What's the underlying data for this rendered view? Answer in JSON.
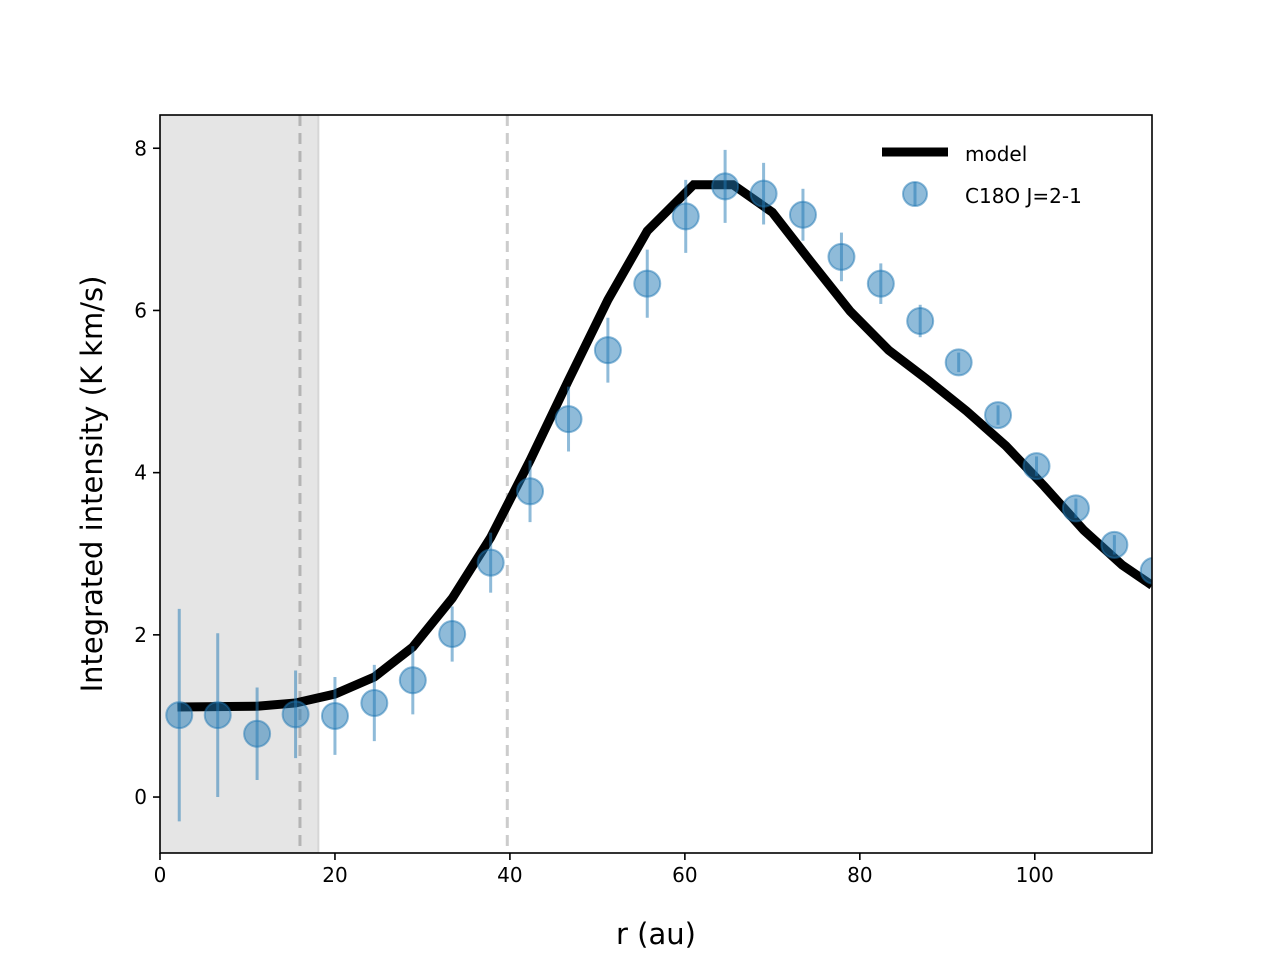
{
  "chart_data": {
    "type": "line",
    "title": "",
    "xlabel": "r (au)",
    "ylabel": "Integrated intensity (K km/s)",
    "xlim": [
      0,
      113.4
    ],
    "ylim": [
      -0.69,
      8.41
    ],
    "xticks": [
      0,
      20,
      40,
      60,
      80,
      100
    ],
    "yticks": [
      0,
      2,
      4,
      6,
      8
    ],
    "xtick_labels": [
      "0",
      "20",
      "40",
      "60",
      "80",
      "100"
    ],
    "ytick_labels": [
      "0",
      "2",
      "4",
      "6",
      "8"
    ],
    "grid": false,
    "legend_position": "top-right",
    "shaded_region": {
      "x": [
        0,
        18.1
      ],
      "color": "#e5e5e5"
    },
    "vlines": [
      {
        "x": 16.0,
        "style": "dashed"
      },
      {
        "x": 39.7,
        "style": "dashed"
      }
    ],
    "series": [
      {
        "name": "model",
        "kind": "line",
        "color": "#000000",
        "x": [
          2.0,
          11.1,
          15.5,
          20.0,
          24.5,
          28.9,
          33.4,
          37.8,
          42.3,
          46.7,
          51.2,
          55.7,
          61.0,
          65.5,
          70.0,
          74.4,
          78.9,
          83.3,
          87.8,
          92.2,
          96.7,
          101.1,
          105.6,
          110.0,
          113.4
        ],
        "y": [
          1.11,
          1.12,
          1.16,
          1.27,
          1.48,
          1.85,
          2.45,
          3.2,
          4.15,
          5.14,
          6.13,
          6.98,
          7.55,
          7.55,
          7.21,
          6.6,
          5.99,
          5.51,
          5.14,
          4.76,
          4.33,
          3.83,
          3.29,
          2.86,
          2.61
        ]
      },
      {
        "name": "C18O J=2-1",
        "kind": "errorbar",
        "color": "#1f77b4",
        "x": [
          2.2,
          6.6,
          11.1,
          15.5,
          20.0,
          24.5,
          28.9,
          33.4,
          37.8,
          42.3,
          46.7,
          51.2,
          55.7,
          60.1,
          64.6,
          69.0,
          73.5,
          77.9,
          82.4,
          86.9,
          91.3,
          95.8,
          100.2,
          104.7,
          109.1,
          113.6
        ],
        "y": [
          1.01,
          1.01,
          0.78,
          1.02,
          1.0,
          1.16,
          1.44,
          2.01,
          2.89,
          3.77,
          4.66,
          5.51,
          6.33,
          7.16,
          7.53,
          7.44,
          7.18,
          6.66,
          6.33,
          5.87,
          5.36,
          4.71,
          4.08,
          3.56,
          3.11,
          2.79
        ],
        "yerr": [
          1.31,
          1.01,
          0.57,
          0.54,
          0.48,
          0.47,
          0.42,
          0.34,
          0.37,
          0.38,
          0.4,
          0.4,
          0.42,
          0.45,
          0.45,
          0.38,
          0.32,
          0.3,
          0.25,
          0.2,
          0.12,
          0.12,
          0.12,
          0.12,
          0.12,
          0.12
        ]
      }
    ]
  }
}
